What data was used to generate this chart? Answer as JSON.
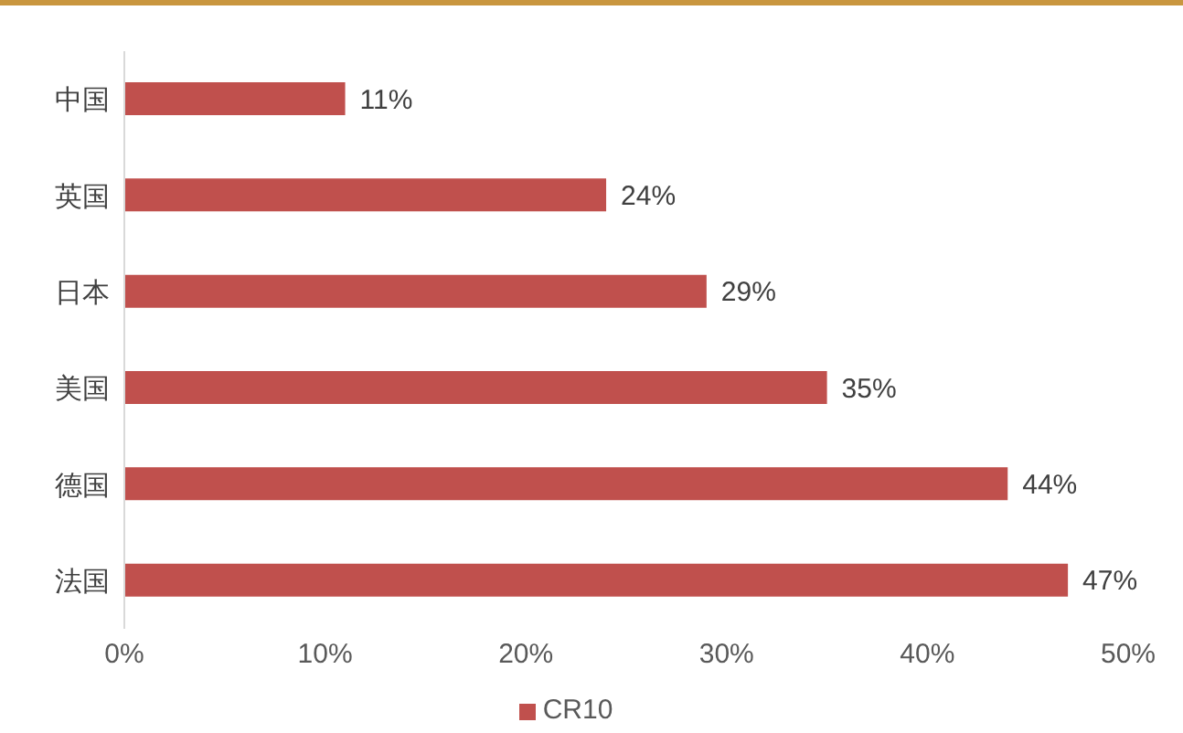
{
  "chart_data": {
    "type": "bar",
    "orientation": "horizontal",
    "categories": [
      "中国",
      "英国",
      "日本",
      "美国",
      "德国",
      "法国"
    ],
    "series": [
      {
        "name": "CR10",
        "color": "#c0504d",
        "values": [
          11,
          24,
          29,
          35,
          44,
          47
        ],
        "value_labels": [
          "11%",
          "24%",
          "29%",
          "35%",
          "44%",
          "47%"
        ]
      }
    ],
    "xlim": [
      0,
      50
    ],
    "xticks": [
      {
        "value": 0,
        "label": "0%"
      },
      {
        "value": 10,
        "label": "10%"
      },
      {
        "value": 20,
        "label": "20%"
      },
      {
        "value": 30,
        "label": "30%"
      },
      {
        "value": 40,
        "label": "40%"
      },
      {
        "value": 50,
        "label": "50%"
      }
    ],
    "grid": false,
    "legend": "bottom"
  }
}
